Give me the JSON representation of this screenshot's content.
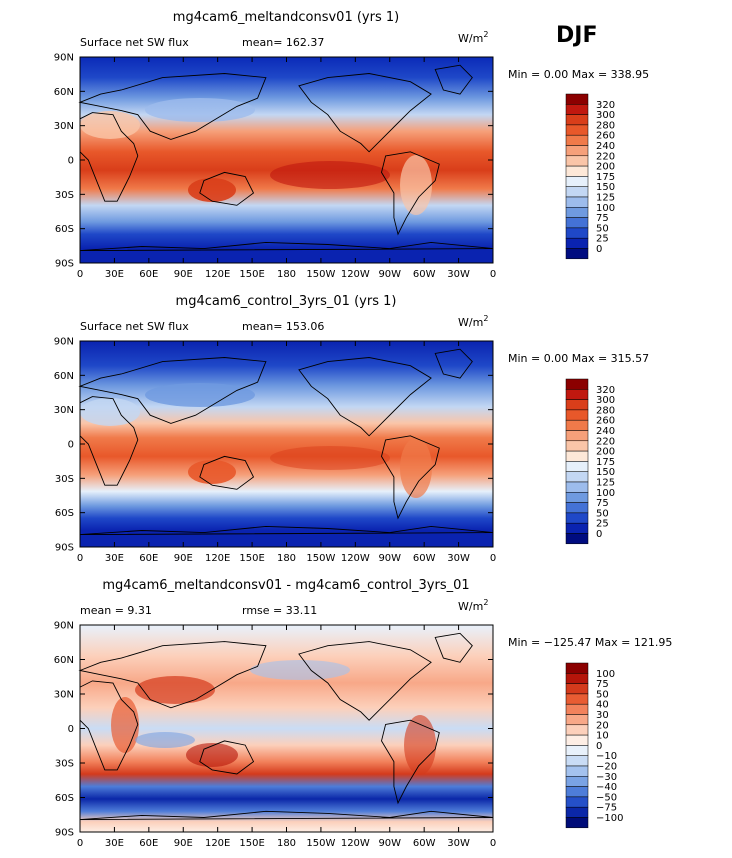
{
  "season": "DJF",
  "panels": [
    {
      "title": "mg4cam6_meltandconsv01 (yrs 1)",
      "left_label": "Surface net SW flux",
      "mid_label": "mean=  162.37",
      "units": "W/m",
      "units_sup": "2",
      "minmax": "Min =     0.00  Max =  338.95",
      "levels": [
        "320",
        "300",
        "280",
        "260",
        "240",
        "220",
        "200",
        "175",
        "150",
        "125",
        "100",
        "75",
        "50",
        "25",
        "0"
      ],
      "colors": [
        "#8b0000",
        "#c0180f",
        "#d93e1a",
        "#e8582a",
        "#f07a4a",
        "#f6a07a",
        "#fac5a8",
        "#fde8d8",
        "#e6f0fb",
        "#c3d7f3",
        "#9dbcec",
        "#6f9ae0",
        "#4472d6",
        "#1f48c8",
        "#0a23b0",
        "#000c80"
      ]
    },
    {
      "title": "mg4cam6_control_3yrs_01 (yrs 1)",
      "left_label": "Surface net SW flux",
      "mid_label": "mean=  153.06",
      "units": "W/m",
      "units_sup": "2",
      "minmax": "Min =     0.00  Max =  315.57",
      "levels": [
        "320",
        "300",
        "280",
        "260",
        "240",
        "220",
        "200",
        "175",
        "150",
        "125",
        "100",
        "75",
        "50",
        "25",
        "0"
      ],
      "colors": [
        "#8b0000",
        "#c0180f",
        "#d93e1a",
        "#e8582a",
        "#f07a4a",
        "#f6a07a",
        "#fac5a8",
        "#fde8d8",
        "#e6f0fb",
        "#c3d7f3",
        "#9dbcec",
        "#6f9ae0",
        "#4472d6",
        "#1f48c8",
        "#0a23b0",
        "#000c80"
      ]
    },
    {
      "title": "mg4cam6_meltandconsv01 - mg4cam6_control_3yrs_01",
      "left_label": "mean =    9.31",
      "mid_label": "rmse =   33.11",
      "units": "W/m",
      "units_sup": "2",
      "minmax": "Min = −125.47  Max =  121.95",
      "levels": [
        "100",
        "75",
        "50",
        "40",
        "30",
        "20",
        "10",
        "0",
        "−10",
        "−20",
        "−30",
        "−40",
        "−50",
        "−75",
        "−100"
      ],
      "colors": [
        "#8b0000",
        "#b5150a",
        "#d43a1c",
        "#e85c33",
        "#f2825c",
        "#f8a888",
        "#fcd0bb",
        "#fdeee5",
        "#e8f1fb",
        "#c9dcf5",
        "#a4c2ee",
        "#7aa3e4",
        "#4e7dd9",
        "#2550c9",
        "#0b27a8",
        "#000c78"
      ]
    }
  ],
  "axes": {
    "lat_ticks": [
      "90N",
      "60N",
      "30N",
      "0",
      "30S",
      "60S",
      "90S"
    ],
    "lon_ticks": [
      "0",
      "30E",
      "60E",
      "90E",
      "120E",
      "150E",
      "180",
      "150W",
      "120W",
      "90W",
      "60W",
      "30W",
      "0"
    ]
  }
}
